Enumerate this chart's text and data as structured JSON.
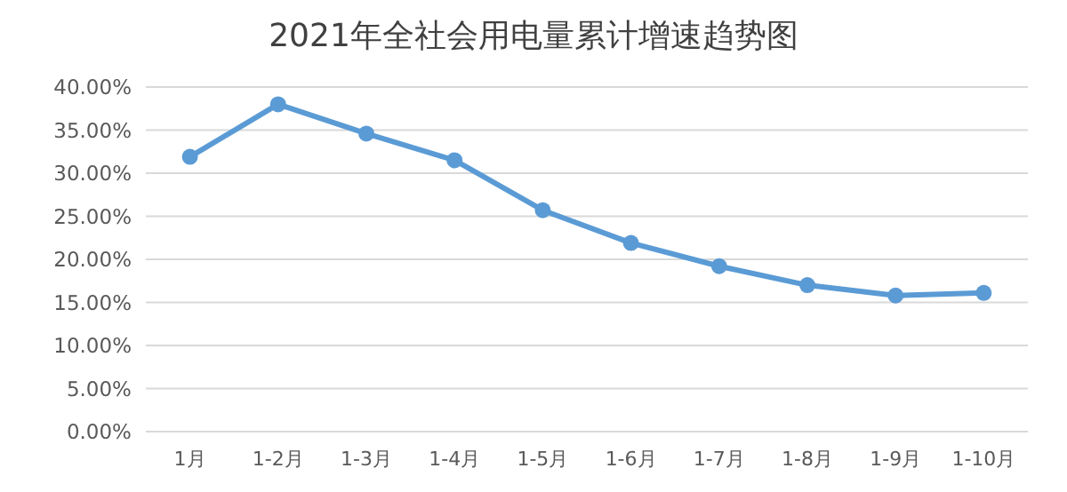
{
  "chart_data": {
    "type": "line",
    "title": "2021年全社会用电量累计增速趋势图",
    "categories": [
      "1月",
      "1-2月",
      "1-3月",
      "1-4月",
      "1-5月",
      "1-6月",
      "1-7月",
      "1-8月",
      "1-9月",
      "1-10月"
    ],
    "series": [
      {
        "color": "#5b9bd5",
        "values": [
          31.9,
          38.0,
          34.6,
          31.5,
          25.7,
          21.9,
          19.2,
          17.0,
          15.8,
          16.1
        ]
      }
    ],
    "ylim": [
      0,
      40
    ],
    "yticks": [
      {
        "value": 0,
        "label": "0.00%"
      },
      {
        "value": 5,
        "label": "5.00%"
      },
      {
        "value": 10,
        "label": "10.00%"
      },
      {
        "value": 15,
        "label": "15.00%"
      },
      {
        "value": 20,
        "label": "20.00%"
      },
      {
        "value": 25,
        "label": "25.00%"
      },
      {
        "value": 30,
        "label": "30.00%"
      },
      {
        "value": 35,
        "label": "35.00%"
      },
      {
        "value": 40,
        "label": "40.00%"
      }
    ],
    "grid": "y",
    "marker": "circle",
    "line_style": "solid"
  }
}
